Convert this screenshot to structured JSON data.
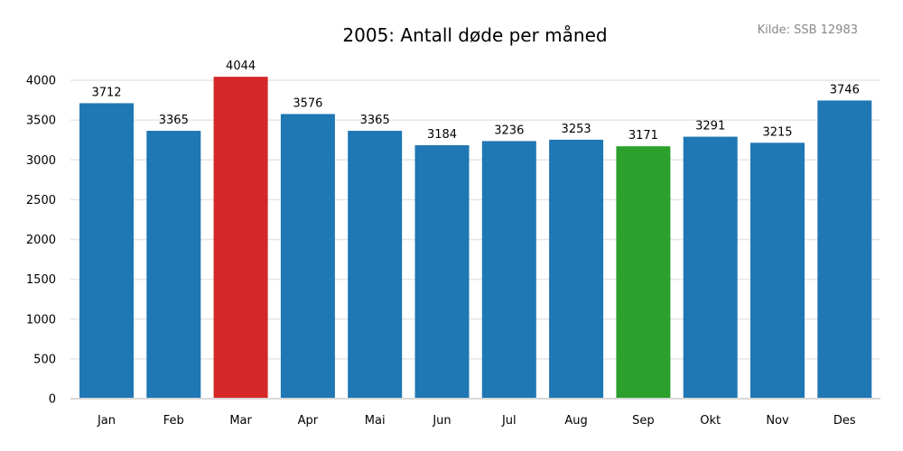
{
  "chart_data": {
    "type": "bar",
    "title": "2005: Antall døde per måned",
    "source_note": "Kilde: SSB 12983",
    "categories": [
      "Jan",
      "Feb",
      "Mar",
      "Apr",
      "Mai",
      "Jun",
      "Jul",
      "Aug",
      "Sep",
      "Okt",
      "Nov",
      "Des"
    ],
    "values": [
      3712,
      3365,
      4044,
      3576,
      3365,
      3184,
      3236,
      3253,
      3171,
      3291,
      3215,
      3746
    ],
    "colors": [
      "#1f77b4",
      "#1f77b4",
      "#d62728",
      "#1f77b4",
      "#1f77b4",
      "#1f77b4",
      "#1f77b4",
      "#1f77b4",
      "#2ca02c",
      "#1f77b4",
      "#1f77b4",
      "#1f77b4"
    ],
    "highlight": {
      "max_color": "#d62728",
      "min_color": "#2ca02c",
      "default_color": "#1f77b4"
    },
    "ylim": [
      0,
      4000
    ],
    "yticks": [
      0,
      500,
      1000,
      1500,
      2000,
      2500,
      3000,
      3500,
      4000
    ],
    "xlabel": "",
    "ylabel": "",
    "grid": true,
    "legend": "none",
    "data_labels": true
  }
}
